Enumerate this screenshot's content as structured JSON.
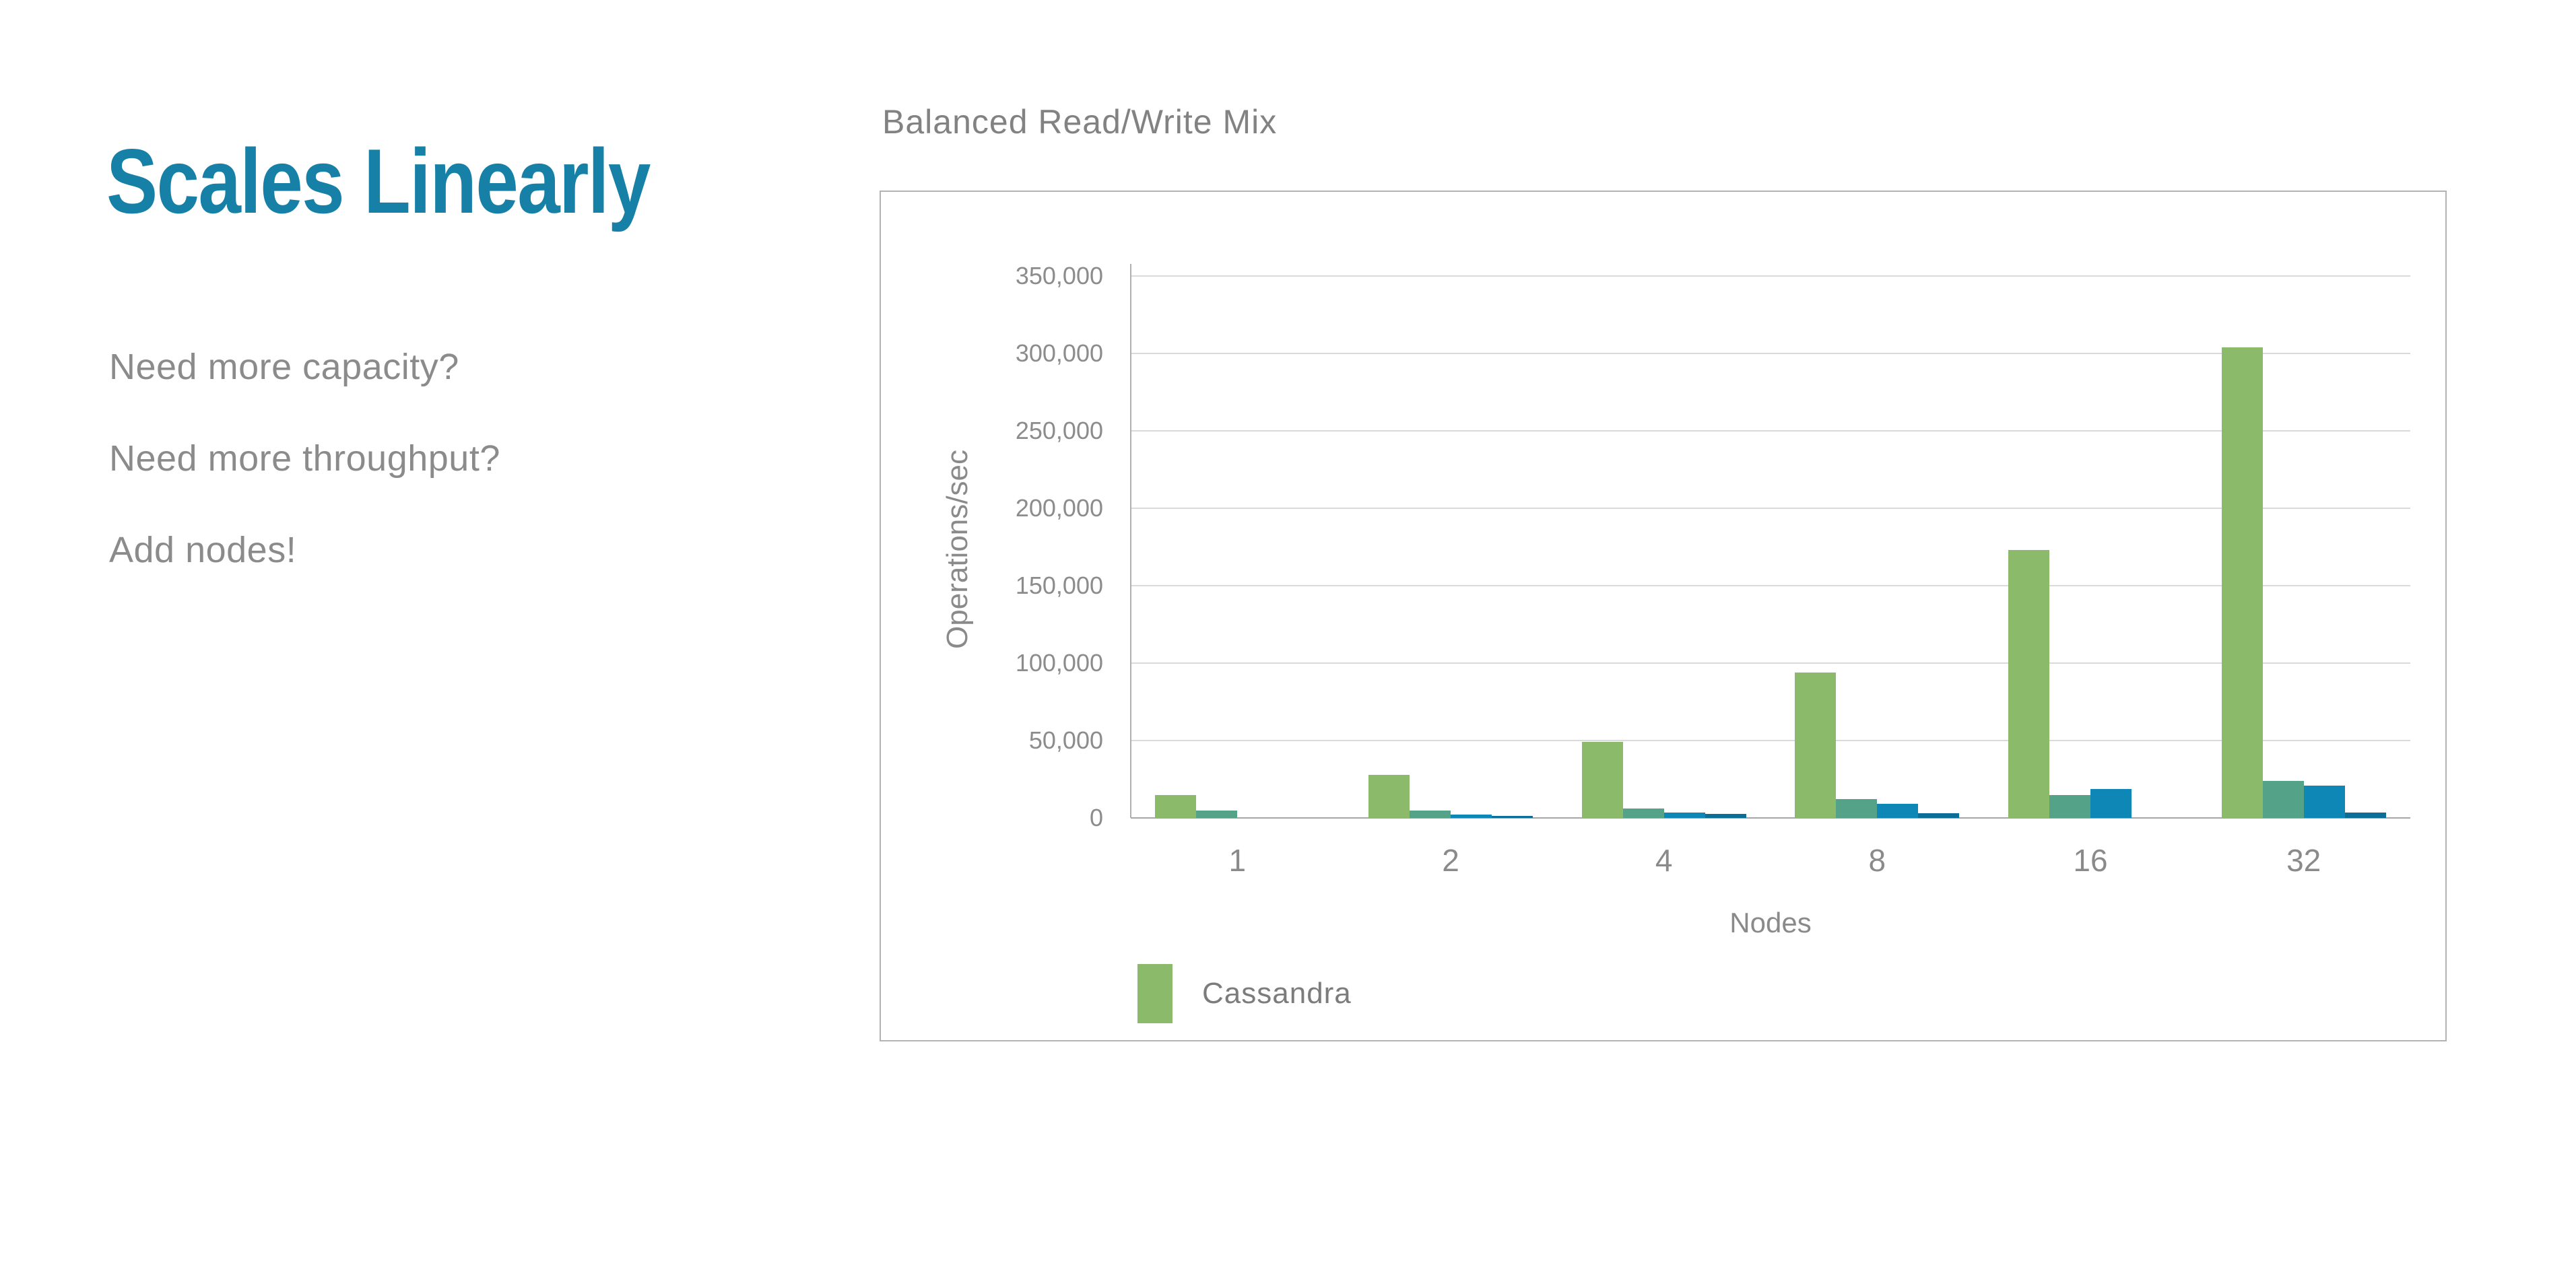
{
  "slide": {
    "title": "Scales Linearly",
    "title_color": "#1780A6",
    "bullets": [
      "Need more capacity?",
      "Need more throughput?",
      "Add nodes!"
    ],
    "bullet_color": "#8B8B8B"
  },
  "chart_header": "Balanced Read/Write Mix",
  "chart_data": {
    "type": "bar",
    "title": "Balanced Read/Write Mix",
    "xlabel": "Nodes",
    "ylabel": "Operations/sec",
    "categories": [
      "1",
      "2",
      "4",
      "8",
      "16",
      "32"
    ],
    "series": [
      {
        "name": "Cassandra",
        "color": "#8CBA6B",
        "values": [
          15000,
          28000,
          49000,
          94000,
          173000,
          304000
        ]
      },
      {
        "name": "",
        "color": "#54A287",
        "values": [
          5000,
          5000,
          6000,
          12000,
          15000,
          24000
        ]
      },
      {
        "name": "",
        "color": "#0E87B6",
        "values": [
          0,
          2000,
          3500,
          9000,
          18500,
          21000
        ]
      },
      {
        "name": "",
        "color": "#0B6E96",
        "values": [
          0,
          1500,
          2500,
          3000,
          0,
          3400
        ]
      }
    ],
    "ylim": [
      0,
      350000
    ],
    "ytick_step": 50000,
    "ytick_labels": [
      "0",
      "50,000",
      "100,000",
      "150,000",
      "200,000",
      "250,000",
      "300,000",
      "350,000"
    ],
    "grid": true,
    "legend": {
      "position": "bottom-left",
      "items": [
        {
          "label": "Cassandra",
          "color": "#8CBA6B"
        }
      ]
    },
    "style": {
      "gridline_color": "#DADADA",
      "baseline_color": "#A6A6A6",
      "axis_line_color": "#B0B0B0",
      "tick_text_color": "#8C8C8C"
    }
  }
}
